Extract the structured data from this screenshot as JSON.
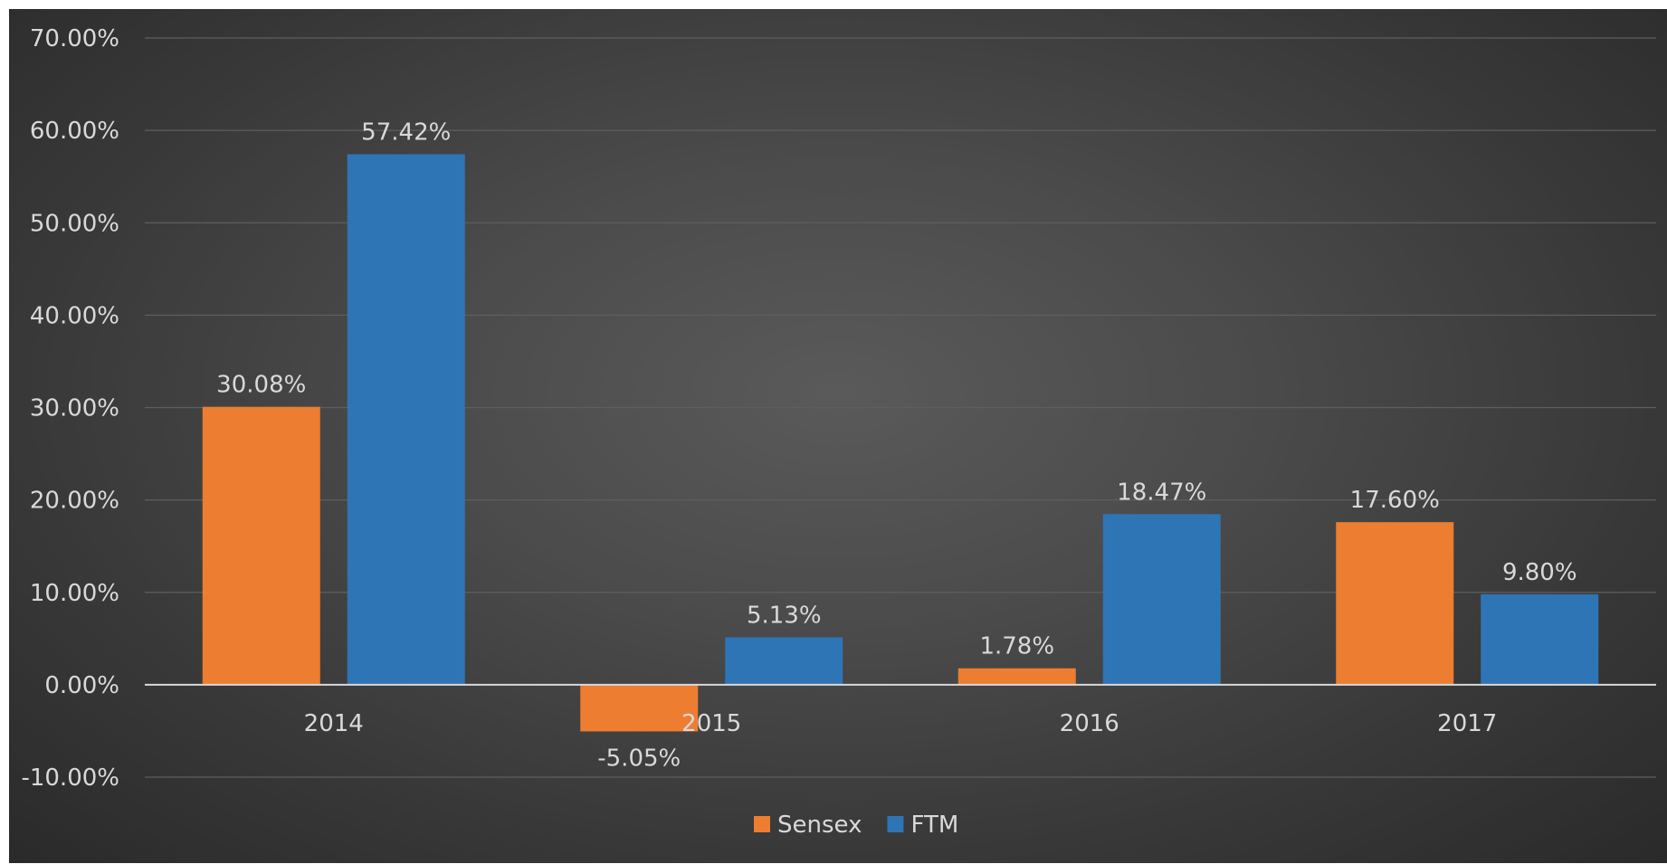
{
  "chart_data": {
    "type": "bar",
    "title": "",
    "xlabel": "",
    "ylabel": "",
    "categories": [
      "2014",
      "2015",
      "2016",
      "2017"
    ],
    "series": [
      {
        "name": "Sensex",
        "color": "#ed7d31",
        "values": [
          30.08,
          -5.05,
          1.78,
          17.6
        ],
        "labels": [
          "30.08%",
          "-5.05%",
          "1.78%",
          "17.60%"
        ]
      },
      {
        "name": "FTM",
        "color": "#2e75b6",
        "values": [
          57.42,
          5.13,
          18.47,
          9.8
        ],
        "labels": [
          "57.42%",
          "5.13%",
          "18.47%",
          "9.80%"
        ]
      }
    ],
    "ylim": [
      -10,
      70
    ],
    "yticks": [
      70,
      60,
      50,
      40,
      30,
      20,
      10,
      0,
      -10
    ],
    "ytick_labels": [
      "70.00%",
      "60.00%",
      "50.00%",
      "40.00%",
      "30.00%",
      "20.00%",
      "10.00%",
      "0.00%",
      "-10.00%"
    ],
    "grid": true,
    "legend": "bottom-center"
  }
}
